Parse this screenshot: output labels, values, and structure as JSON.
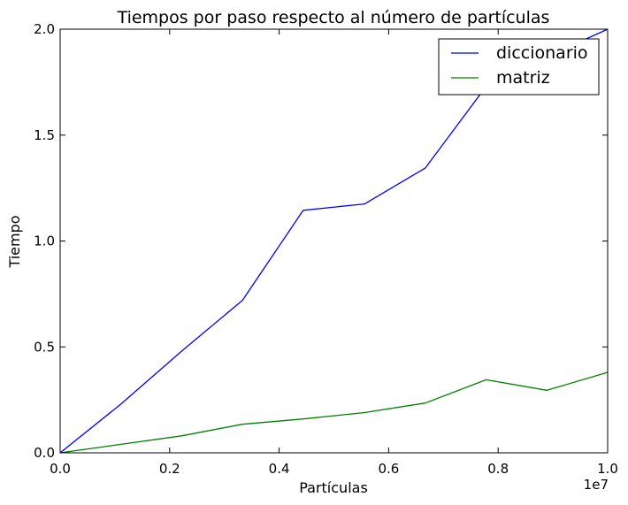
{
  "chart_data": {
    "type": "line",
    "title": "Tiempos por paso respecto al número de partículas",
    "xlabel": "Partículas",
    "ylabel": "Tiempo",
    "x_offset_label": "1e7",
    "xlim": [
      0,
      1.0
    ],
    "ylim": [
      0,
      2.0
    ],
    "xticks": [
      "0.0",
      "0.2",
      "0.4",
      "0.6",
      "0.8",
      "1.0"
    ],
    "yticks": [
      "0.0",
      "0.5",
      "1.0",
      "1.5",
      "2.0"
    ],
    "grid": false,
    "legend_position": "top-right",
    "x": [
      0.0,
      0.111,
      0.222,
      0.333,
      0.444,
      0.556,
      0.667,
      0.778,
      0.889,
      1.0
    ],
    "series": [
      {
        "name": "diccionario",
        "color": "#0000ff",
        "values": [
          0.0,
          0.23,
          0.48,
          0.72,
          1.145,
          1.175,
          1.345,
          1.73,
          1.87,
          2.0
        ]
      },
      {
        "name": "matriz",
        "color": "#008000",
        "values": [
          0.0,
          0.04,
          0.08,
          0.135,
          0.16,
          0.19,
          0.235,
          0.345,
          0.295,
          0.38
        ]
      }
    ]
  }
}
